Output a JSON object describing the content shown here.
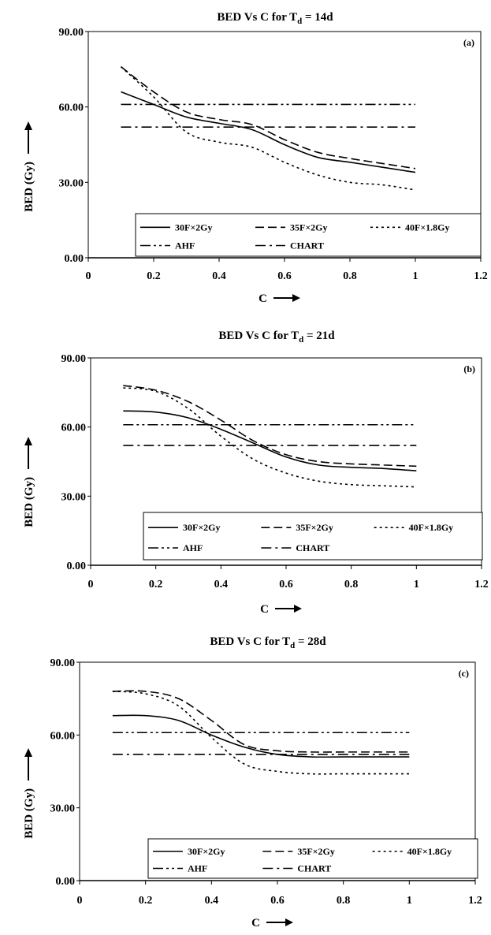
{
  "chart_data": [
    {
      "type": "line",
      "panel_label": "(a)",
      "title_prefix": "BED Vs C for T",
      "title_subscript": "d",
      "title_suffix": " = 14d",
      "xlabel": "C",
      "ylabel": "BED (Gy)",
      "xlim": [
        0,
        1.2
      ],
      "ylim": [
        0,
        90
      ],
      "x_ticks": [
        "0",
        "0.2",
        "0.4",
        "0.6",
        "0.8",
        "1",
        "1.2"
      ],
      "y_ticks": [
        "0.00",
        "30.00",
        "60.00",
        "90.00"
      ],
      "legend_placement": "bottom-right",
      "series": [
        {
          "name": "30F×2Gy",
          "style": "solid",
          "x": [
            0.1,
            0.2,
            0.3,
            0.4,
            0.5,
            0.6,
            0.7,
            0.8,
            0.9,
            1.0
          ],
          "y": [
            66,
            61,
            56,
            53.5,
            51,
            45,
            40,
            38,
            36,
            34
          ]
        },
        {
          "name": "35F×2Gy",
          "style": "dash",
          "x": [
            0.1,
            0.2,
            0.3,
            0.4,
            0.5,
            0.6,
            0.7,
            0.8,
            0.9,
            1.0
          ],
          "y": [
            76,
            66,
            58,
            55,
            53,
            47,
            42,
            39.5,
            37.5,
            35.5
          ]
        },
        {
          "name": "40F×1.8Gy",
          "style": "dot",
          "x": [
            0.1,
            0.2,
            0.3,
            0.4,
            0.5,
            0.6,
            0.7,
            0.8,
            0.9,
            1.0
          ],
          "y": [
            76,
            64,
            50,
            46,
            44,
            38,
            33,
            30,
            29,
            27
          ]
        },
        {
          "name": "AHF",
          "style": "dashdotdot",
          "x": [
            0.1,
            1.0
          ],
          "y": [
            61,
            61
          ]
        },
        {
          "name": "CHART",
          "style": "dashdot",
          "x": [
            0.1,
            1.0
          ],
          "y": [
            52,
            52
          ]
        }
      ]
    },
    {
      "type": "line",
      "panel_label": "(b)",
      "title_prefix": "BED Vs C for T",
      "title_subscript": "d",
      "title_suffix": " = 21d",
      "xlabel": "C",
      "ylabel": "BED (Gy)",
      "xlim": [
        0,
        1.2
      ],
      "ylim": [
        0,
        90
      ],
      "x_ticks": [
        "0",
        "0.2",
        "0.4",
        "0.6",
        "0.8",
        "1",
        "1.2"
      ],
      "y_ticks": [
        "0.00",
        "30.00",
        "60.00",
        "90.00"
      ],
      "legend_placement": "bottom-right",
      "series": [
        {
          "name": "30F×2Gy",
          "style": "solid",
          "x": [
            0.1,
            0.2,
            0.3,
            0.4,
            0.5,
            0.6,
            0.7,
            0.8,
            0.9,
            1.0
          ],
          "y": [
            67,
            66.5,
            64,
            59,
            53,
            47,
            43.5,
            42.5,
            42,
            41
          ]
        },
        {
          "name": "35F×2Gy",
          "style": "dash",
          "x": [
            0.1,
            0.2,
            0.3,
            0.4,
            0.5,
            0.6,
            0.7,
            0.8,
            0.9,
            1.0
          ],
          "y": [
            78,
            76,
            71,
            63,
            54,
            48,
            45,
            44,
            43.5,
            43
          ]
        },
        {
          "name": "40F×1.8Gy",
          "style": "dot",
          "x": [
            0.1,
            0.2,
            0.3,
            0.4,
            0.5,
            0.6,
            0.7,
            0.8,
            0.9,
            1.0
          ],
          "y": [
            77,
            75.5,
            68,
            56,
            46,
            40,
            36.5,
            35,
            34.5,
            34
          ]
        },
        {
          "name": "AHF",
          "style": "dashdotdot",
          "x": [
            0.1,
            1.0
          ],
          "y": [
            61,
            61
          ]
        },
        {
          "name": "CHART",
          "style": "dashdot",
          "x": [
            0.1,
            1.0
          ],
          "y": [
            52,
            52
          ]
        }
      ]
    },
    {
      "type": "line",
      "panel_label": "(c)",
      "title_prefix": "BED Vs C for T",
      "title_subscript": "d",
      "title_suffix": " = 28d",
      "xlabel": "C",
      "ylabel": "BED (Gy)",
      "xlim": [
        0,
        1.2
      ],
      "ylim": [
        0,
        90
      ],
      "x_ticks": [
        "0",
        "0.2",
        "0.4",
        "0.6",
        "0.8",
        "1",
        "1.2"
      ],
      "y_ticks": [
        "0.00",
        "30.00",
        "60.00",
        "90.00"
      ],
      "legend_placement": "bottom-right",
      "series": [
        {
          "name": "30F×2Gy",
          "style": "solid",
          "x": [
            0.1,
            0.2,
            0.3,
            0.4,
            0.5,
            0.6,
            0.7,
            0.8,
            0.9,
            1.0
          ],
          "y": [
            68,
            68,
            66,
            60,
            55,
            52,
            51,
            51,
            51,
            51
          ]
        },
        {
          "name": "35F×2Gy",
          "style": "dash",
          "x": [
            0.1,
            0.2,
            0.3,
            0.4,
            0.5,
            0.6,
            0.7,
            0.8,
            0.9,
            1.0
          ],
          "y": [
            78,
            78,
            75,
            66,
            56,
            53.5,
            53,
            53,
            53,
            53
          ]
        },
        {
          "name": "40F×1.8Gy",
          "style": "dot",
          "x": [
            0.1,
            0.2,
            0.3,
            0.4,
            0.5,
            0.6,
            0.7,
            0.8,
            0.9,
            1.0
          ],
          "y": [
            78,
            77,
            72,
            59,
            48,
            45,
            44,
            44,
            44,
            44
          ]
        },
        {
          "name": "AHF",
          "style": "dashdotdot",
          "x": [
            0.1,
            1.0
          ],
          "y": [
            61,
            61
          ]
        },
        {
          "name": "CHART",
          "style": "dashdot",
          "x": [
            0.1,
            1.0
          ],
          "y": [
            52,
            52
          ]
        }
      ]
    }
  ]
}
